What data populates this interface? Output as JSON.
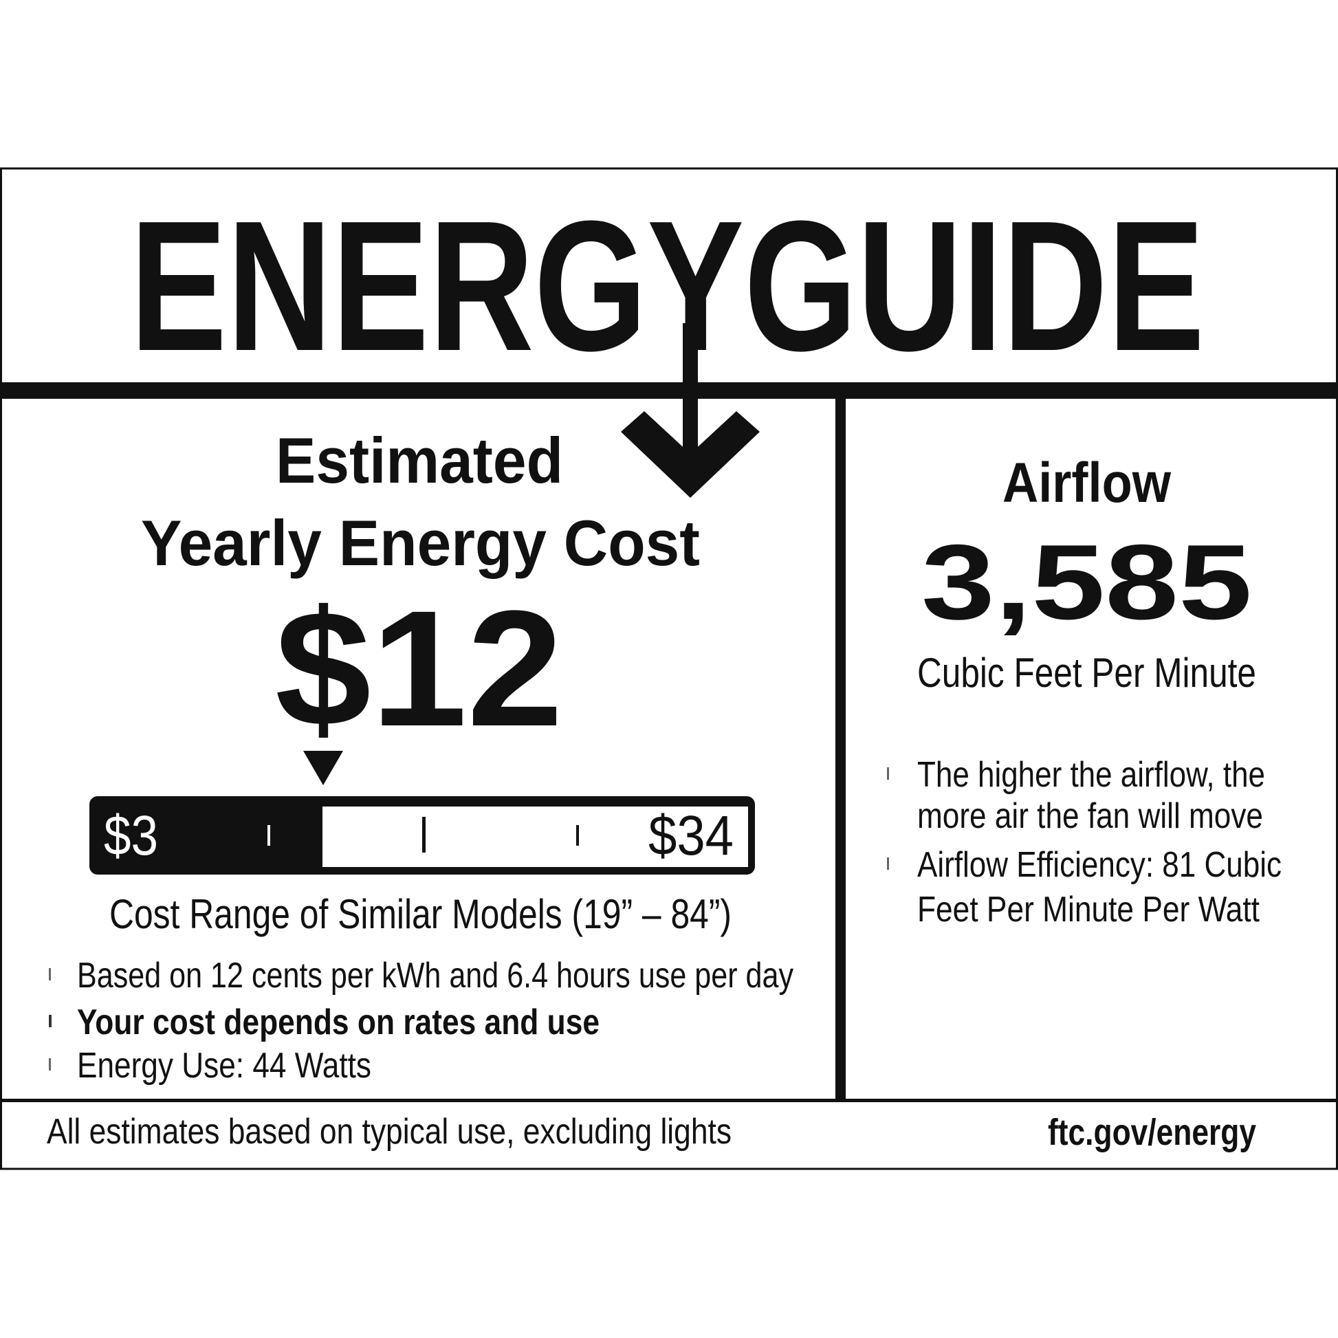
{
  "header": {
    "title": "ENERGYGUIDE"
  },
  "cost": {
    "heading_line1": "Estimated",
    "heading_line2": "Yearly Energy Cost",
    "value": "$12",
    "range_min": "$3",
    "range_max": "$34",
    "marker_value": 12,
    "range_caption": "Cost Range of Similar Models (19” – 84”)",
    "bullets": [
      "Based on 12 cents per kWh and 6.4 hours use per day",
      "Your cost depends on rates and use",
      "Energy Use: 44 Watts"
    ]
  },
  "airflow": {
    "heading": "Airflow",
    "value": "3,585",
    "unit": "Cubic Feet Per Minute",
    "bullets": [
      "The higher the airflow, the",
      "more air the fan will move",
      "Airflow Efficiency: 81 Cubic",
      "Feet Per Minute Per Watt"
    ]
  },
  "footer": {
    "note": "All estimates based on typical use, excluding lights",
    "link": "ftc.gov/energy"
  },
  "colors": {
    "ink": "#111111",
    "background": "#ffffff"
  }
}
